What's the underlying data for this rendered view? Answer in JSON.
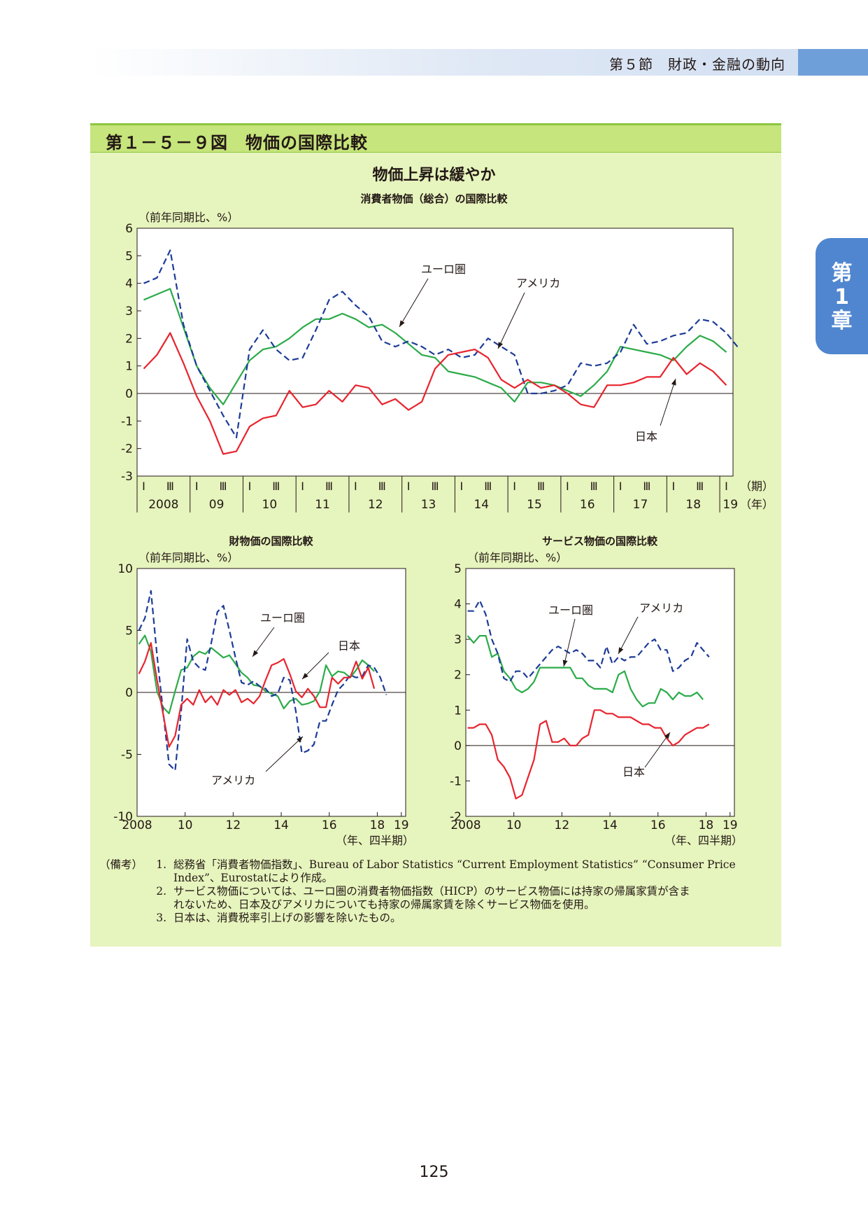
{
  "header": {
    "section": "第５節　財政・金融の動向"
  },
  "chapter_tab": [
    "第",
    "1",
    "章"
  ],
  "figure": {
    "title": "第１－５－９図　物価の国際比較",
    "headline": "物価上昇は緩やか"
  },
  "labels": {
    "yunit": "（前年同期比、%）",
    "ki": "（期）",
    "nen": "（年）",
    "nenq": "（年、四半期）"
  },
  "colors": {
    "euro": "#1d3c97",
    "usa": "#2bab49",
    "japan": "#e8242e"
  },
  "chart_data": [
    {
      "type": "line",
      "title": "消費者物価（総合）の国際比較",
      "ylabel": "（前年同期比、%）",
      "ylim": [
        -3,
        6
      ],
      "yticks": [
        -3,
        -2,
        -1,
        0,
        1,
        2,
        3,
        4,
        5,
        6
      ],
      "quarter_labels": [
        "Ⅰ",
        "Ⅲ"
      ],
      "year_labels": [
        "2008",
        "09",
        "10",
        "11",
        "12",
        "13",
        "14",
        "15",
        "16",
        "17",
        "18",
        "19"
      ],
      "x_start": "2008Q1",
      "series": [
        {
          "name": "ユーロ圏",
          "style": "dashed",
          "color": "#1d3c97",
          "values": [
            4.0,
            4.2,
            5.2,
            2.5,
            1.0,
            0.1,
            -0.8,
            -1.6,
            1.6,
            2.3,
            1.6,
            1.2,
            1.3,
            2.3,
            3.4,
            3.7,
            3.2,
            2.8,
            1.9,
            1.7,
            1.9,
            1.7,
            1.4,
            1.6,
            1.3,
            1.4,
            2.0,
            1.7,
            1.4,
            0.0,
            0.0,
            0.1,
            0.3,
            1.1,
            1.0,
            1.1,
            1.5,
            2.5,
            1.8,
            1.9,
            2.1,
            2.2,
            2.7,
            2.6,
            2.2,
            1.6
          ]
        },
        {
          "name": "アメリカ",
          "style": "solid",
          "color": "#2bab49",
          "values": [
            3.4,
            3.6,
            3.8,
            2.4,
            1.0,
            0.2,
            -0.4,
            0.4,
            1.2,
            1.6,
            1.7,
            2.0,
            2.4,
            2.7,
            2.7,
            2.9,
            2.7,
            2.4,
            2.5,
            2.2,
            1.8,
            1.4,
            1.3,
            0.8,
            0.7,
            0.6,
            0.4,
            0.2,
            -0.3,
            0.4,
            0.4,
            0.3,
            0.1,
            -0.1,
            0.3,
            0.8,
            1.7,
            1.6,
            1.5,
            1.4,
            1.2,
            1.7,
            2.1,
            1.9,
            1.5
          ]
        },
        {
          "name": "日本",
          "style": "solid",
          "color": "#e8242e",
          "values": [
            0.9,
            1.4,
            2.2,
            1.1,
            -0.1,
            -1.0,
            -2.2,
            -2.1,
            -1.2,
            -0.9,
            -0.8,
            0.1,
            -0.5,
            -0.4,
            0.1,
            -0.3,
            0.3,
            0.2,
            -0.4,
            -0.2,
            -0.6,
            -0.3,
            0.9,
            1.4,
            1.5,
            1.6,
            1.3,
            0.5,
            0.2,
            0.5,
            0.2,
            0.3,
            0.0,
            -0.4,
            -0.5,
            0.3,
            0.3,
            0.4,
            0.6,
            0.6,
            1.3,
            0.7,
            1.1,
            0.8,
            0.3
          ]
        }
      ],
      "annotations": [
        "ユーロ圏",
        "アメリカ",
        "日本"
      ]
    },
    {
      "type": "line",
      "title": "財物価の国際比較",
      "ylabel": "（前年同期比、%）",
      "ylim": [
        -10,
        10
      ],
      "yticks": [
        -10,
        -5,
        0,
        5,
        10
      ],
      "xticks": [
        "2008",
        "10",
        "12",
        "14",
        "16",
        "18",
        "19"
      ],
      "xlabel": "（年、四半期）",
      "x_start": "2008Q1",
      "series": [
        {
          "name": "ユーロ圏",
          "style": "dashed",
          "color": "#1d3c97",
          "values": [
            5.0,
            6.0,
            8.2,
            3.0,
            -1.5,
            -5.8,
            -6.3,
            -1.5,
            4.3,
            2.5,
            2.0,
            1.8,
            4.0,
            6.5,
            7.0,
            5.0,
            2.8,
            0.8,
            0.6,
            0.9,
            0.5,
            0.3,
            -0.3,
            -0.1,
            1.2,
            1.0,
            -1.5,
            -4.9,
            -4.7,
            -4.2,
            -2.3,
            -2.3,
            -1.0,
            0.2,
            0.7,
            1.4,
            1.2,
            1.3,
            2.2,
            2.0,
            1.2,
            -0.2
          ]
        },
        {
          "name": "アメリカ",
          "style": "solid",
          "color": "#2bab49",
          "values": [
            3.9,
            4.6,
            3.3,
            0.1,
            -1.2,
            -1.7,
            0.1,
            1.8,
            2.0,
            2.9,
            3.3,
            3.1,
            3.6,
            3.2,
            2.8,
            3.0,
            2.3,
            1.6,
            1.2,
            0.6,
            0.5,
            0.1,
            -0.1,
            -0.3,
            -1.3,
            -0.7,
            -0.5,
            -1.0,
            -0.9,
            -0.7,
            0.1,
            2.2,
            1.3,
            1.7,
            1.6,
            1.2,
            1.8,
            2.6,
            2.2,
            1.7
          ]
        },
        {
          "name": "日本",
          "style": "solid",
          "color": "#e8242e",
          "values": [
            1.5,
            2.5,
            4.0,
            1.0,
            -1.7,
            -4.4,
            -3.5,
            -1.0,
            -0.5,
            -1.0,
            0.2,
            -0.8,
            -0.3,
            -1.0,
            0.2,
            -0.2,
            0.2,
            -0.8,
            -0.5,
            -0.9,
            -0.3,
            1.0,
            2.2,
            2.4,
            2.7,
            1.5,
            0.1,
            -0.4,
            0.3,
            -0.3,
            -1.2,
            -1.2,
            1.2,
            0.7,
            1.2,
            1.2,
            2.5,
            1.1,
            2.0,
            0.3
          ]
        }
      ],
      "annotations": [
        "ユーロ圏",
        "日本",
        "アメリカ"
      ]
    },
    {
      "type": "line",
      "title": "サービス物価の国際比較",
      "ylabel": "（前年同期比、%）",
      "ylim": [
        -2,
        5
      ],
      "yticks": [
        -2,
        -1,
        0,
        1,
        2,
        3,
        4,
        5
      ],
      "xticks": [
        "2008",
        "10",
        "12",
        "14",
        "16",
        "18",
        "19"
      ],
      "xlabel": "（年、四半期）",
      "x_start": "2008Q1",
      "series": [
        {
          "name": "ユーロ圏",
          "style": "dashed",
          "color": "#1d3c97",
          "values": [
            3.8,
            3.8,
            4.1,
            3.7,
            3.0,
            2.6,
            1.9,
            1.8,
            2.1,
            2.1,
            1.9,
            2.1,
            2.3,
            2.5,
            2.7,
            2.8,
            2.7,
            2.6,
            2.7,
            2.6,
            2.4,
            2.4,
            2.2,
            2.8,
            2.3,
            2.5,
            2.4,
            2.5,
            2.5,
            2.7,
            2.9,
            3.0,
            2.7,
            2.7,
            2.1,
            2.2,
            2.4,
            2.5,
            2.9,
            2.7,
            2.5
          ]
        },
        {
          "name": "アメリカ",
          "style": "solid",
          "color": "#2bab49",
          "values": [
            3.1,
            2.9,
            3.1,
            3.1,
            2.5,
            2.6,
            2.1,
            1.9,
            1.6,
            1.5,
            1.6,
            1.8,
            2.2,
            2.2,
            2.2,
            2.2,
            2.2,
            2.2,
            1.9,
            1.9,
            1.7,
            1.6,
            1.6,
            1.6,
            1.5,
            2.0,
            2.1,
            1.6,
            1.3,
            1.1,
            1.2,
            1.2,
            1.6,
            1.5,
            1.3,
            1.5,
            1.4,
            1.4,
            1.5,
            1.3
          ]
        },
        {
          "name": "日本",
          "style": "solid",
          "color": "#e8242e",
          "values": [
            0.5,
            0.5,
            0.6,
            0.6,
            0.3,
            -0.4,
            -0.6,
            -0.9,
            -1.5,
            -1.4,
            -0.9,
            -0.4,
            0.6,
            0.7,
            0.1,
            0.1,
            0.2,
            0.0,
            0.0,
            0.2,
            0.3,
            1.0,
            1.0,
            0.9,
            0.9,
            0.8,
            0.8,
            0.8,
            0.7,
            0.6,
            0.6,
            0.5,
            0.5,
            0.2,
            0.0,
            0.1,
            0.3,
            0.4,
            0.5,
            0.5,
            0.6
          ]
        }
      ],
      "annotations": [
        "ユーロ圏",
        "アメリカ",
        "日本"
      ]
    }
  ],
  "notes": {
    "label": "（備考）",
    "items": [
      {
        "num": "1.",
        "lines": [
          "総務省「消費者物価指数」、Bureau of Labor Statistics “Current Employment Statistics” “Consumer Price",
          "Index”、Eurostatにより作成。"
        ]
      },
      {
        "num": "2.",
        "lines": [
          "サービス物価については、ユーロ圏の消費者物価指数（HICP）のサービス物価には持家の帰属家賃が含ま",
          "れないため、日本及びアメリカについても持家の帰属家賃を除くサービス物価を使用。"
        ]
      },
      {
        "num": "3.",
        "lines": [
          "日本は、消費税率引上げの影響を除いたもの。"
        ]
      }
    ]
  },
  "page_number": "125"
}
